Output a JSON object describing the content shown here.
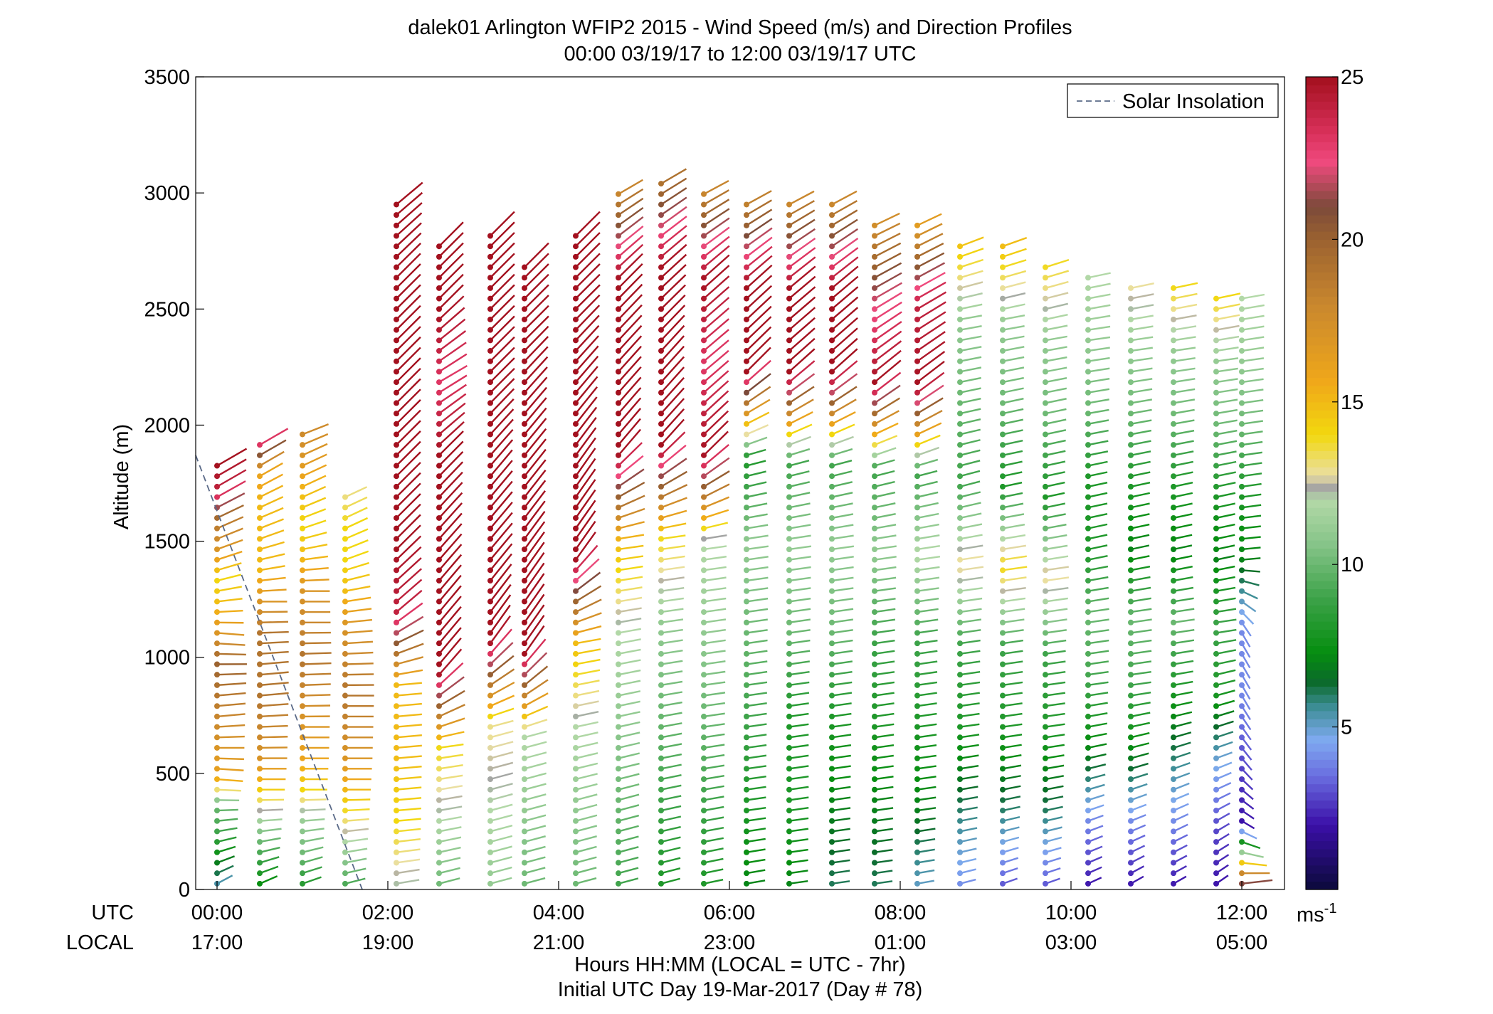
{
  "chart_data": {
    "type": "wind_barb_profile",
    "title": "dalek01 Arlington WFIP2 2015 - Wind Speed (m/s) and Direction Profiles",
    "subtitle": "00:00 03/19/17 to 12:00 03/19/17  UTC",
    "ylabel": "Altitude (m)",
    "xlabel": "Hours HH:MM  (LOCAL = UTC - 7hr)",
    "xlabel2": "Initial UTC Day 19-Mar-2017 (Day # 78)",
    "row_labels": [
      "UTC",
      "LOCAL"
    ],
    "ylim": [
      0,
      3500
    ],
    "yticks": [
      0,
      500,
      1000,
      1500,
      2000,
      2500,
      3000,
      3500
    ],
    "xlim_hours_utc": [
      -0.25,
      12.5
    ],
    "xticks_hours_utc": [
      0,
      2,
      4,
      6,
      8,
      10,
      12
    ],
    "xticks_utc": [
      "00:00",
      "02:00",
      "04:00",
      "06:00",
      "08:00",
      "10:00",
      "12:00"
    ],
    "xticks_local": [
      "17:00",
      "19:00",
      "21:00",
      "23:00",
      "01:00",
      "03:00",
      "05:00"
    ],
    "colorbar": {
      "label": "ms",
      "label_superscript": "-1",
      "range": [
        0,
        25
      ],
      "ticks": [
        5,
        10,
        15,
        20,
        25
      ],
      "stops": [
        {
          "v": 0,
          "c": "#0b0a3a"
        },
        {
          "v": 2,
          "c": "#3b0fa8"
        },
        {
          "v": 3.5,
          "c": "#6a6ee0"
        },
        {
          "v": 4.6,
          "c": "#7faaf0"
        },
        {
          "v": 5.6,
          "c": "#3e8e97"
        },
        {
          "v": 6.4,
          "c": "#0a6a2a"
        },
        {
          "v": 7.3,
          "c": "#068e10"
        },
        {
          "v": 9,
          "c": "#3ea34a"
        },
        {
          "v": 10.6,
          "c": "#85c488"
        },
        {
          "v": 12,
          "c": "#b4d9a8"
        },
        {
          "v": 12.35,
          "c": "#a3a3a3"
        },
        {
          "v": 12.75,
          "c": "#eadfa2"
        },
        {
          "v": 14,
          "c": "#f2d80e"
        },
        {
          "v": 15.6,
          "c": "#f0a81a"
        },
        {
          "v": 18,
          "c": "#c9872e"
        },
        {
          "v": 20,
          "c": "#9b6230"
        },
        {
          "v": 21,
          "c": "#7c4a3a"
        },
        {
          "v": 22.4,
          "c": "#f04a7e"
        },
        {
          "v": 23.3,
          "c": "#d8305a"
        },
        {
          "v": 25,
          "c": "#a3101e"
        }
      ]
    },
    "legend": {
      "label": "Solar Insolation",
      "position": "top-right",
      "style": "dashed"
    },
    "solar_insolation_line": {
      "x": [
        -0.35,
        1.7
      ],
      "y": [
        1870,
        0
      ]
    },
    "profiles": [
      {
        "t": 0.0,
        "top": 1830,
        "speed": [
          5,
          7,
          9,
          10,
          16,
          17,
          18,
          19,
          20,
          17,
          15,
          14,
          17,
          19,
          24,
          25
        ],
        "dir": [
          240,
          250,
          260,
          270,
          275,
          270,
          265,
          265,
          270,
          275,
          265,
          255,
          250,
          245,
          240,
          240
        ]
      },
      {
        "t": 0.5,
        "top": 1930,
        "speed": [
          7,
          9,
          11,
          14,
          17,
          18,
          19,
          19,
          19,
          17,
          15,
          15,
          15,
          16,
          24
        ],
        "dir": [
          245,
          255,
          265,
          270,
          270,
          268,
          265,
          265,
          268,
          270,
          260,
          250,
          245,
          240,
          240
        ]
      },
      {
        "t": 1.0,
        "top": 2000,
        "speed": [
          8,
          10,
          11,
          14,
          16,
          17,
          18,
          19,
          18,
          17,
          15,
          14,
          15,
          17,
          18
        ],
        "dir": [
          250,
          255,
          265,
          270,
          270,
          270,
          268,
          268,
          270,
          270,
          262,
          250,
          245,
          245,
          250
        ]
      },
      {
        "t": 1.5,
        "top": 1700,
        "speed": [
          9,
          11,
          13,
          15,
          17,
          18,
          19,
          18,
          17,
          15,
          14,
          14,
          13
        ],
        "dir": [
          255,
          260,
          265,
          270,
          270,
          270,
          270,
          268,
          265,
          260,
          250,
          245,
          245
        ]
      },
      {
        "t": 2.1,
        "top": 2950,
        "speed": [
          12,
          14,
          15,
          15,
          24,
          25,
          25,
          25,
          25,
          25,
          25
        ],
        "dir": [
          260,
          265,
          265,
          265,
          230,
          225,
          225,
          225,
          225,
          225,
          230
        ]
      },
      {
        "t": 2.6,
        "top": 2800,
        "speed": [
          10,
          12,
          14,
          25,
          25,
          25,
          25,
          23,
          25,
          25
        ],
        "dir": [
          255,
          260,
          262,
          220,
          220,
          222,
          225,
          240,
          225,
          225
        ]
      },
      {
        "t": 3.2,
        "top": 2850,
        "speed": [
          11,
          12,
          13,
          25,
          25,
          25,
          25,
          25,
          25
        ],
        "dir": [
          255,
          255,
          255,
          215,
          220,
          220,
          225,
          225,
          225
        ]
      },
      {
        "t": 3.6,
        "top": 2700,
        "speed": [
          10,
          11,
          12,
          25,
          25,
          25,
          25,
          25,
          25
        ],
        "dir": [
          255,
          255,
          255,
          215,
          215,
          218,
          220,
          225,
          225
        ]
      },
      {
        "t": 4.2,
        "top": 2850,
        "speed": [
          10,
          11,
          12,
          15,
          25,
          25,
          25,
          25,
          25
        ],
        "dir": [
          255,
          255,
          258,
          260,
          215,
          215,
          220,
          225,
          225
        ]
      },
      {
        "t": 4.7,
        "top": 3000,
        "speed": [
          9,
          10,
          11,
          12,
          15,
          25,
          25,
          25,
          18
        ],
        "dir": [
          255,
          255,
          258,
          260,
          262,
          220,
          222,
          225,
          240
        ]
      },
      {
        "t": 5.2,
        "top": 3050,
        "speed": [
          8,
          9,
          10,
          11,
          14,
          25,
          25,
          25,
          19
        ],
        "dir": [
          255,
          258,
          260,
          262,
          262,
          222,
          222,
          228,
          240
        ]
      },
      {
        "t": 5.7,
        "top": 3000,
        "speed": [
          8,
          9,
          10,
          11,
          12,
          25,
          23,
          25,
          18
        ],
        "dir": [
          258,
          260,
          262,
          262,
          262,
          225,
          230,
          228,
          242
        ]
      },
      {
        "t": 6.2,
        "top": 2970,
        "speed": [
          7,
          8,
          9,
          10,
          11,
          8,
          25,
          25,
          18
        ],
        "dir": [
          260,
          262,
          262,
          262,
          262,
          255,
          225,
          228,
          242
        ]
      },
      {
        "t": 6.7,
        "top": 2950,
        "speed": [
          7,
          8,
          8,
          10,
          11,
          9,
          25,
          25,
          18
        ],
        "dir": [
          262,
          262,
          262,
          262,
          262,
          255,
          228,
          230,
          242
        ]
      },
      {
        "t": 7.2,
        "top": 2950,
        "speed": [
          6,
          7,
          8,
          10,
          11,
          9,
          25,
          25,
          18
        ],
        "dir": [
          262,
          262,
          262,
          262,
          262,
          255,
          228,
          230,
          242
        ]
      },
      {
        "t": 7.7,
        "top": 2900,
        "speed": [
          6,
          7,
          8,
          9,
          11,
          9,
          25,
          22,
          17
        ],
        "dir": [
          262,
          262,
          262,
          262,
          262,
          255,
          230,
          240,
          245
        ]
      },
      {
        "t": 8.2,
        "top": 2880,
        "speed": [
          5,
          7,
          8,
          9,
          12,
          9,
          25,
          24,
          16
        ],
        "dir": [
          260,
          262,
          262,
          262,
          262,
          255,
          232,
          240,
          245
        ]
      },
      {
        "t": 8.7,
        "top": 2800,
        "speed": [
          4,
          6,
          8,
          9,
          13,
          9,
          10,
          11,
          15
        ],
        "dir": [
          255,
          260,
          262,
          262,
          262,
          255,
          258,
          260,
          248
        ]
      },
      {
        "t": 9.2,
        "top": 2780,
        "speed": [
          3,
          6,
          8,
          9,
          14,
          8,
          10,
          11,
          15
        ],
        "dir": [
          250,
          258,
          262,
          262,
          262,
          258,
          258,
          260,
          250
        ]
      },
      {
        "t": 9.7,
        "top": 2700,
        "speed": [
          3,
          6,
          8,
          9,
          13,
          8,
          10,
          11,
          14
        ],
        "dir": [
          250,
          258,
          262,
          262,
          262,
          258,
          258,
          260,
          252
        ]
      },
      {
        "t": 10.2,
        "top": 2650,
        "speed": [
          2,
          4,
          7,
          9,
          10,
          8,
          8,
          10,
          11,
          12
        ],
        "dir": [
          245,
          250,
          258,
          262,
          262,
          258,
          258,
          260,
          262,
          258
        ]
      },
      {
        "t": 10.7,
        "top": 2620,
        "speed": [
          2,
          4,
          7,
          9,
          10,
          7,
          8,
          10,
          11,
          13
        ],
        "dir": [
          240,
          248,
          255,
          262,
          262,
          258,
          258,
          260,
          262,
          258
        ]
      },
      {
        "t": 11.2,
        "top": 2600,
        "speed": [
          2,
          4,
          6,
          8,
          10,
          7,
          8,
          10,
          11,
          14
        ],
        "dir": [
          240,
          245,
          252,
          260,
          262,
          258,
          258,
          260,
          262,
          258
        ]
      },
      {
        "t": 11.7,
        "top": 2550,
        "speed": [
          2,
          3,
          5,
          8,
          9,
          7,
          8,
          10,
          11,
          14
        ],
        "dir": [
          235,
          240,
          250,
          255,
          262,
          258,
          258,
          260,
          262,
          258
        ]
      },
      {
        "t": 12.0,
        "top": 2550,
        "speed": [
          23,
          2,
          3,
          4,
          4,
          7,
          8,
          10,
          11,
          12
        ],
        "dir": [
          260,
          300,
          320,
          330,
          330,
          265,
          262,
          262,
          262,
          260
        ]
      }
    ]
  }
}
